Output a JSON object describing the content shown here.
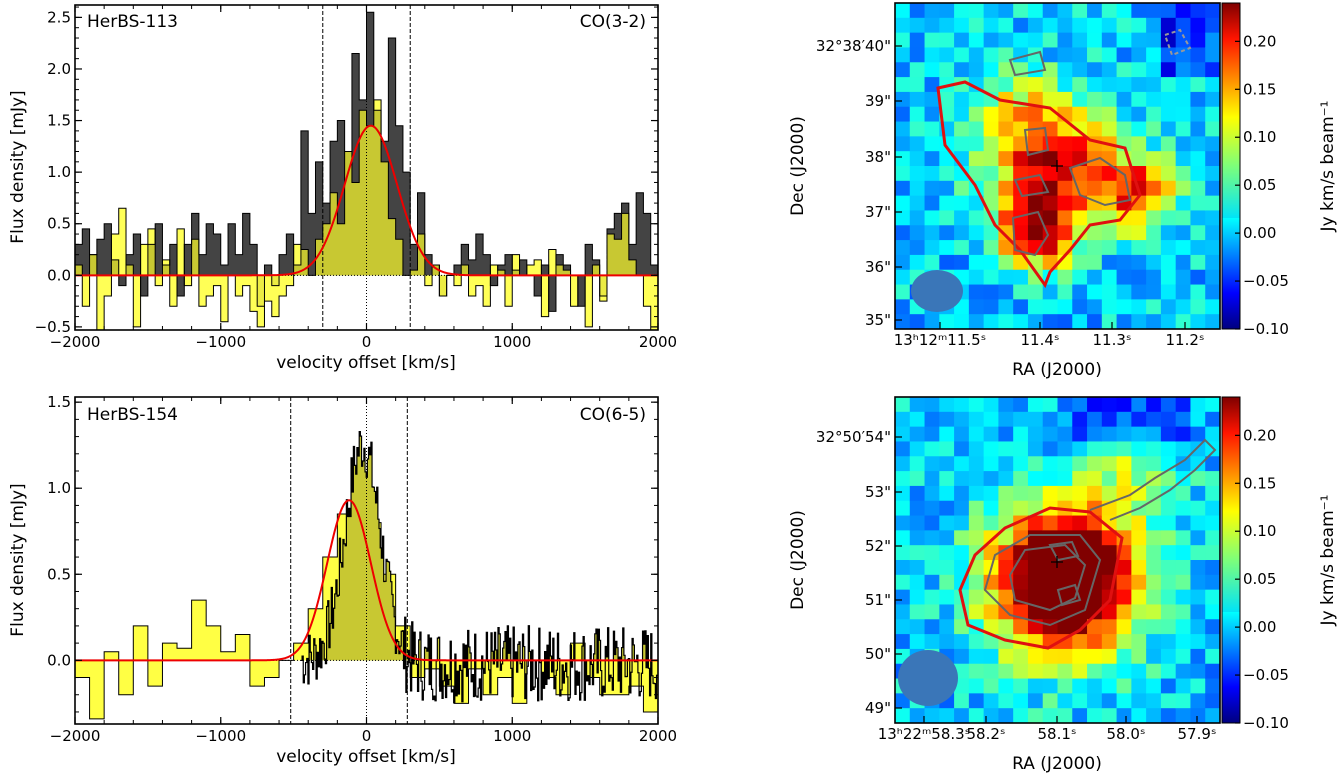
{
  "spectra": [
    {
      "source_label": "HerBS-113",
      "line_label": "CO(3-2)",
      "xlabel": "velocity offset [km/s]",
      "ylabel": "Flux density [mJy]",
      "xlim": [
        -2000,
        2000
      ],
      "ylim": [
        -0.53,
        2.62
      ],
      "xticks": [
        -2000,
        -1000,
        0,
        1000,
        2000
      ],
      "xtick_labels": [
        "−2000",
        "−1000",
        "0",
        "1000",
        "2000"
      ],
      "yticks": [
        -0.5,
        0.0,
        0.5,
        1.0,
        1.5,
        2.0,
        2.5
      ],
      "ytick_labels": [
        "−0.5",
        "0.0",
        "0.5",
        "1.0",
        "1.5",
        "2.0",
        "2.5"
      ],
      "vlines": [
        -300,
        0,
        300
      ]
    },
    {
      "source_label": "HerBS-154",
      "line_label": "CO(6-5)",
      "xlabel": "velocity offset [km/s]",
      "ylabel": "Flux density [mJy]",
      "xlim": [
        -2000,
        2000
      ],
      "ylim": [
        -0.37,
        1.53
      ],
      "xticks": [
        -2000,
        -1000,
        0,
        1000,
        2000
      ],
      "xtick_labels": [
        "−2000",
        "−1000",
        "0",
        "1000",
        "2000"
      ],
      "yticks": [
        0.0,
        0.5,
        1.0,
        1.5
      ],
      "ytick_labels": [
        "0.0",
        "0.5",
        "1.0",
        "1.5"
      ],
      "vlines": [
        -520,
        0,
        280
      ]
    }
  ],
  "maps": [
    {
      "ylabel": "Dec (J2000)",
      "xlabel": "RA (J2000)",
      "ytick_labels": [
        "32°38′40\"",
        "39\"",
        "38\"",
        "37\"",
        "36\"",
        "35\""
      ],
      "xtick_labels": [
        "13ʰ12ᵐ11.5ˢ",
        "11.4ˢ",
        "11.3ˢ",
        "11.2ˢ"
      ],
      "colorbar_label": "Jy km/s beam⁻¹",
      "colorbar_ticks": [
        "0.20",
        "0.15",
        "0.10",
        "0.05",
        "0.00",
        "−0.05",
        "−0.10"
      ]
    },
    {
      "ylabel": "Dec (J2000)",
      "xlabel": "RA (J2000)",
      "ytick_labels": [
        "32°50′54\"",
        "53\"",
        "52\"",
        "51\"",
        "50\"",
        "49\""
      ],
      "xtick_labels": [
        "13ʰ22ᵐ58.3ˢ",
        "58.2ˢ",
        "58.1ˢ",
        "58.0ˢ",
        "57.9ˢ"
      ],
      "colorbar_label": "Jy km/s beam⁻¹",
      "colorbar_ticks": [
        "0.20",
        "0.15",
        "0.10",
        "0.05",
        "0.00",
        "−0.05",
        "−0.10"
      ]
    }
  ],
  "chart_data": [
    {
      "type": "line",
      "subtype": "step spectrum with gaussian fit",
      "source": "HerBS-113",
      "line": "CO(3-2)",
      "xlabel": "velocity offset [km/s]",
      "ylabel": "Flux density [mJy]",
      "xlim": [
        -2000,
        2000
      ],
      "ylim": [
        -0.53,
        2.62
      ],
      "colors": {
        "dark_spectrum": "#444444",
        "yellow_spectrum": "#ffff44",
        "overlap": "#c8c832",
        "fit": "#ee0000"
      },
      "series": [
        {
          "x": [
            -2000,
            -1950,
            -1900,
            -1850,
            -1800,
            -1750,
            -1700,
            -1650,
            -1600,
            -1550,
            -1500,
            -1450,
            -1400,
            -1350,
            -1300,
            -1250,
            -1200,
            -1150,
            -1100,
            -1050,
            -1000,
            -950,
            -900,
            -850,
            -800,
            -750,
            -700,
            -650,
            -600,
            -550,
            -500,
            -450,
            -400,
            -350,
            -300,
            -250,
            -200,
            -150,
            -100,
            -50,
            0,
            50,
            100,
            150,
            200,
            250,
            300,
            350,
            400,
            450,
            500,
            550,
            600,
            650,
            700,
            750,
            800,
            850,
            900,
            950,
            1000,
            1050,
            1100,
            1150,
            1200,
            1250,
            1300,
            1350,
            1400,
            1450,
            1500,
            1550,
            1600,
            1650,
            1700,
            1750,
            1800,
            1850,
            1900,
            1950
          ],
          "y": [
            0.3,
            0.45,
            0.2,
            0.35,
            0.5,
            0.15,
            -0.1,
            0.2,
            0.4,
            -0.2,
            0.3,
            0.5,
            0.1,
            0.3,
            -0.2,
            0.3,
            0.6,
            0.2,
            0.5,
            0.4,
            0.1,
            0.5,
            0.2,
            0.6,
            0.3,
            -0.3,
            0.1,
            -0.1,
            0.2,
            0.4,
            0.1,
            1.4,
            0.6,
            1.1,
            0.7,
            1.3,
            1.5,
            1.2,
            2.15,
            1.7,
            2.55,
            1.6,
            1.3,
            2.3,
            1.45,
            1.0,
            0.3,
            0.8,
            0.2,
            0.1,
            -0.2,
            0.0,
            0.1,
            0.3,
            0.15,
            0.4,
            0.2,
            -0.1,
            0.1,
            0.2,
            0.05,
            0.15,
            0.0,
            -0.2,
            0.1,
            -0.35,
            0.2,
            0.1,
            0.0,
            -0.3,
            0.3,
            0.15,
            -0.2,
            0.45,
            0.6,
            0.7,
            0.3,
            0.8,
            0.6,
            0.1
          ]
        },
        {
          "x": [
            -2000,
            -1950,
            -1900,
            -1850,
            -1800,
            -1750,
            -1700,
            -1650,
            -1600,
            -1550,
            -1500,
            -1450,
            -1400,
            -1350,
            -1300,
            -1250,
            -1200,
            -1150,
            -1100,
            -1050,
            -1000,
            -950,
            -900,
            -850,
            -800,
            -750,
            -700,
            -650,
            -600,
            -550,
            -500,
            -450,
            -400,
            -350,
            -300,
            -250,
            -200,
            -150,
            -100,
            -50,
            0,
            50,
            100,
            150,
            200,
            250,
            300,
            350,
            400,
            450,
            500,
            550,
            600,
            650,
            700,
            750,
            800,
            850,
            900,
            950,
            1000,
            1050,
            1100,
            1150,
            1200,
            1250,
            1300,
            1350,
            1400,
            1450,
            1500,
            1550,
            1600,
            1650,
            1700,
            1750,
            1800,
            1850,
            1900,
            1950
          ],
          "y": [
            0.1,
            -0.3,
            0.2,
            -0.6,
            -0.2,
            0.4,
            0.65,
            0.1,
            -0.5,
            0.3,
            0.45,
            -0.1,
            0.15,
            -0.3,
            0.45,
            -0.1,
            0.35,
            -0.3,
            -0.2,
            -0.1,
            -0.45,
            0.0,
            -0.2,
            -0.1,
            -0.35,
            -0.5,
            -0.25,
            -0.4,
            -0.2,
            -0.1,
            0.3,
            0.25,
            0.0,
            0.35,
            0.5,
            0.8,
            0.5,
            1.2,
            0.9,
            1.6,
            1.45,
            1.7,
            1.1,
            0.55,
            0.35,
            0.0,
            0.05,
            0.4,
            -0.1,
            0.1,
            -0.2,
            0.0,
            -0.1,
            0.1,
            -0.2,
            -0.1,
            -0.3,
            0.1,
            0.05,
            -0.3,
            0.2,
            0.0,
            0.1,
            0.15,
            -0.4,
            0.25,
            0.1,
            0.05,
            -0.3,
            0.0,
            -0.5,
            0.1,
            -0.25,
            0.4,
            0.35,
            0.6,
            0.15,
            0.0,
            -0.3,
            -0.55
          ]
        },
        {
          "gaussian_fit": true,
          "amplitude": 1.45,
          "center": 30,
          "sigma": 180
        }
      ]
    },
    {
      "type": "line",
      "subtype": "step spectrum with gaussian fit",
      "source": "HerBS-154",
      "line": "CO(6-5)",
      "xlabel": "velocity offset [km/s]",
      "ylabel": "Flux density [mJy]",
      "xlim": [
        -2000,
        2000
      ],
      "ylim": [
        -0.37,
        1.53
      ],
      "colors": {
        "dark_spectrum": "#000000",
        "yellow_spectrum": "#ffff44",
        "overlap": "#c8c832",
        "fit": "#ee0000"
      },
      "series": [
        {
          "x": [
            -2000,
            -1900,
            -1800,
            -1700,
            -1600,
            -1500,
            -1400,
            -1300,
            -1200,
            -1100,
            -1000,
            -900,
            -800,
            -700,
            -600,
            -500,
            -400,
            -300,
            -200,
            -100,
            0,
            100,
            200,
            300,
            400,
            500,
            600,
            700,
            800,
            900,
            1000,
            1100,
            1200,
            1300,
            1400,
            1500,
            1600,
            1700,
            1800,
            1900
          ],
          "y": [
            -0.1,
            -0.34,
            0.05,
            -0.2,
            0.2,
            -0.15,
            0.1,
            0.07,
            0.35,
            0.2,
            0.05,
            0.15,
            -0.15,
            -0.1,
            0.0,
            0.1,
            0.3,
            0.6,
            0.85,
            0.95,
            0.8,
            0.5,
            0.2,
            -0.1,
            -0.05,
            -0.15,
            -0.25,
            -0.05,
            -0.2,
            -0.1,
            -0.25,
            0.0,
            -0.1,
            -0.2,
            0.1,
            -0.1,
            -0.2,
            -0.2,
            -0.15,
            -0.3
          ]
        },
        {
          "x_start": -450,
          "x_end": 2000,
          "note": "high resolution spectrum",
          "peak": 1.45
        },
        {
          "gaussian_fit": true,
          "amplitude": 0.93,
          "center": -120,
          "sigma": 150
        }
      ]
    },
    {
      "type": "heatmap",
      "xlabel": "RA (J2000)",
      "ylabel": "Dec (J2000)",
      "colorbar_label": "Jy km/s beam⁻¹",
      "colorbar_range": [
        -0.1,
        0.24
      ],
      "colormap": "jet"
    },
    {
      "type": "heatmap",
      "xlabel": "RA (J2000)",
      "ylabel": "Dec (J2000)",
      "colorbar_label": "Jy km/s beam⁻¹",
      "colorbar_range": [
        -0.1,
        0.24
      ],
      "colormap": "jet"
    }
  ]
}
